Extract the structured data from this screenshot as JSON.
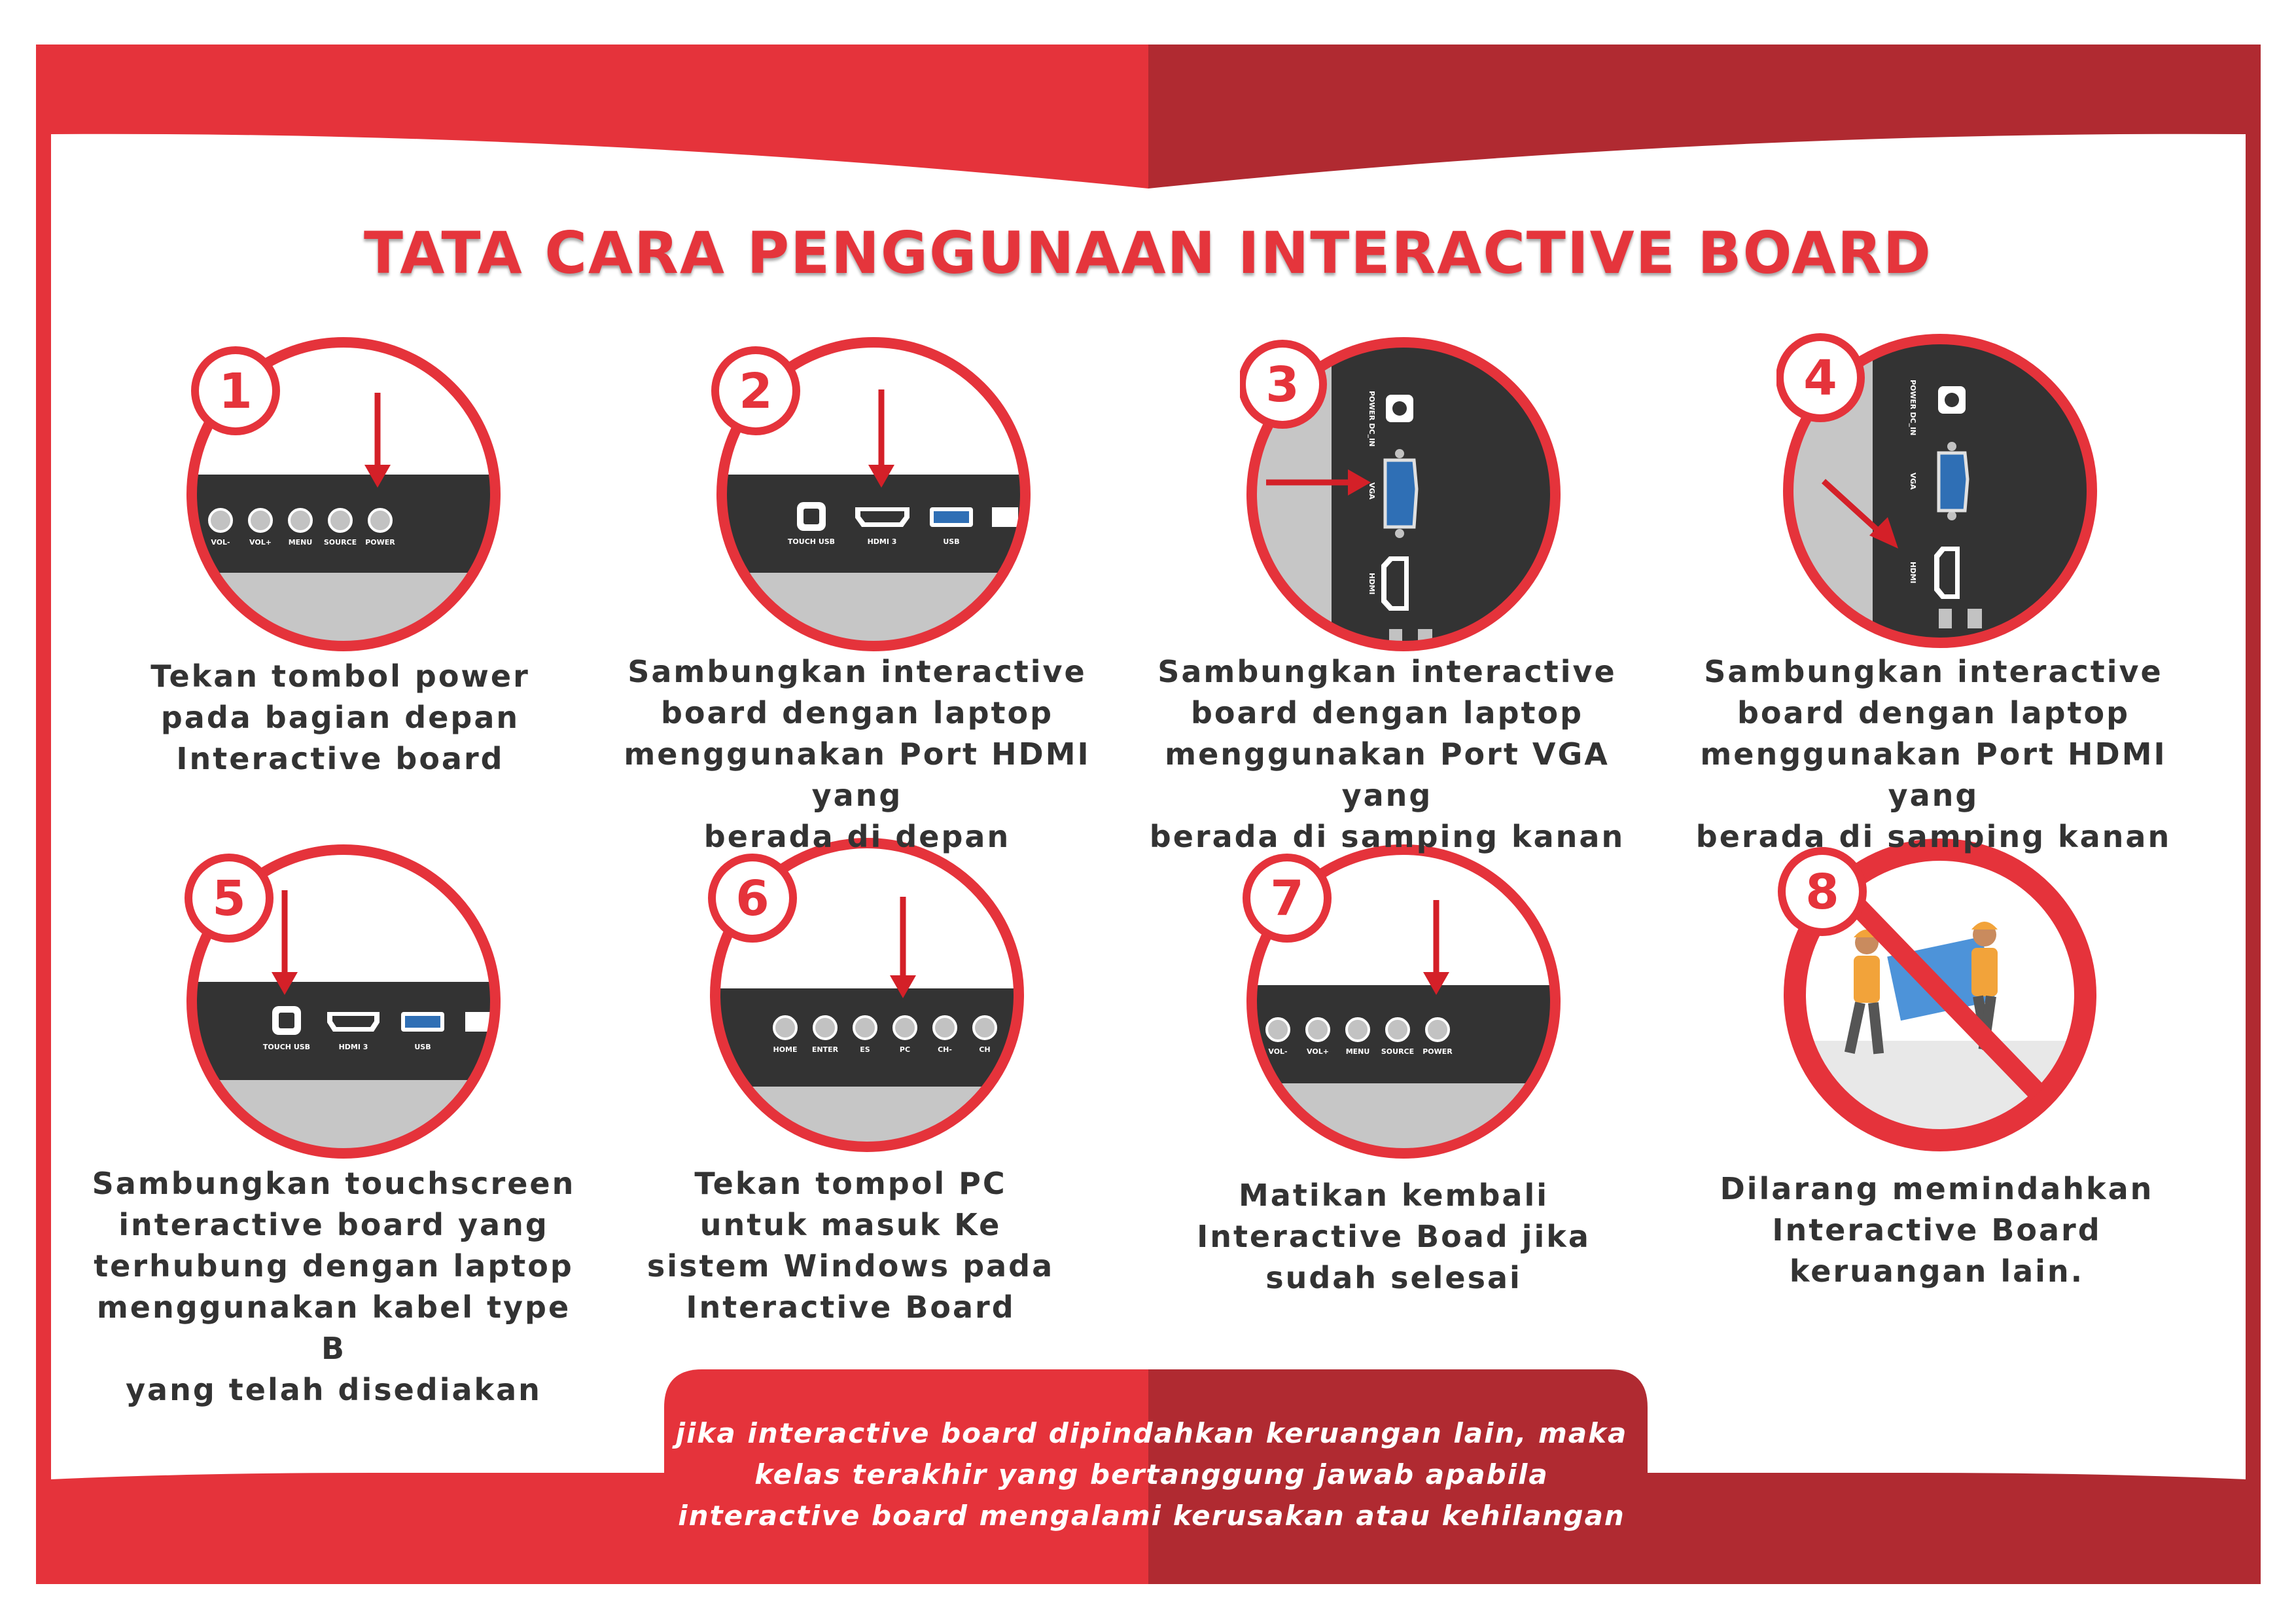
{
  "title": "TATA CARA PENGGUNAAN INTERACTIVE BOARD",
  "colors": {
    "red": "#e5333b",
    "dark_red": "#b02a31",
    "panel": "#333333",
    "port_grey": "#c2c2c2",
    "vga_blue": "#2f6fb5",
    "floor": "#c6c6c6"
  },
  "steps": [
    {
      "number": "1",
      "caption": [
        "Tekan tombol power",
        "pada bagian depan",
        "Interactive board"
      ],
      "buttons": [
        "VOL-",
        "VOL+",
        "MENU",
        "SOURCE",
        "POWER"
      ]
    },
    {
      "number": "2",
      "caption": [
        "Sambungkan interactive",
        "board dengan laptop",
        "menggunakan Port HDMI yang",
        "berada di depan"
      ],
      "ports": [
        "TOUCH USB",
        "HDMI 3",
        "USB"
      ]
    },
    {
      "number": "3",
      "caption": [
        "Sambungkan interactive",
        "board dengan laptop",
        "menggunakan Port VGA yang",
        "berada di samping kanan"
      ],
      "ports": [
        "POWER DC_IN",
        "VGA",
        "HDMI"
      ]
    },
    {
      "number": "4",
      "caption": [
        "Sambungkan interactive",
        "board dengan laptop",
        "menggunakan Port HDMI yang",
        "berada di samping kanan"
      ],
      "ports": [
        "POWER DC_IN",
        "VGA",
        "HDMI"
      ]
    },
    {
      "number": "5",
      "caption": [
        "Sambungkan touchscreen",
        "interactive board yang",
        "terhubung dengan laptop",
        "menggunakan kabel type B",
        "yang telah disediakan"
      ],
      "ports": [
        "TOUCH USB",
        "HDMI 3",
        "USB"
      ]
    },
    {
      "number": "6",
      "caption": [
        "Tekan tompol PC",
        "untuk masuk Ke",
        "sistem Windows pada",
        "Interactive Board"
      ],
      "buttons": [
        "HOME",
        "ENTER",
        "ES",
        "PC",
        "CH-",
        "CH"
      ]
    },
    {
      "number": "7",
      "caption": [
        "Matikan kembali",
        "Interactive Boad jika",
        "sudah selesai"
      ],
      "buttons": [
        "VOL-",
        "VOL+",
        "MENU",
        "SOURCE",
        "POWER"
      ]
    },
    {
      "number": "8",
      "caption": [
        "Dilarang memindahkan",
        "Interactive Board",
        "keruangan lain."
      ]
    }
  ],
  "note": [
    "jika interactive board dipindahkan keruangan lain, maka",
    "kelas terakhir yang bertanggung jawab apabila",
    "interactive board mengalami kerusakan atau kehilangan"
  ]
}
